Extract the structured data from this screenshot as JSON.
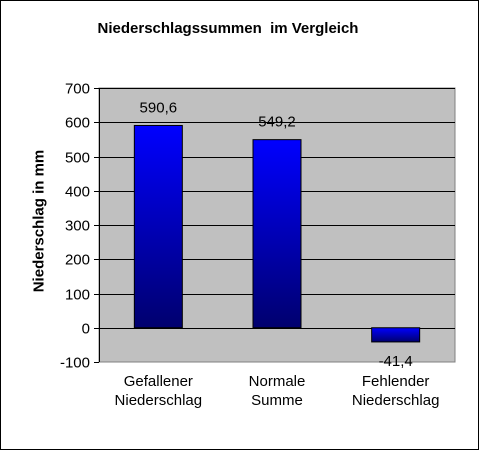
{
  "chart_data": {
    "type": "bar",
    "title": "Niederschlagssummen  im Vergleich",
    "ylabel": "Niederschlag in mm",
    "xlabel": "",
    "categories": [
      [
        "Gefallener",
        "Niederschlag"
      ],
      [
        "Normale",
        "Summe"
      ],
      [
        "Fehlender",
        "Niederschlag"
      ]
    ],
    "values": [
      590.6,
      549.2,
      -41.4
    ],
    "value_labels": [
      "590,6",
      "549,2",
      "-41,4"
    ],
    "ylim": [
      -100,
      700
    ],
    "yticks": [
      -100,
      0,
      100,
      200,
      300,
      400,
      500,
      600,
      700
    ],
    "ytick_labels": [
      "-100",
      "0",
      "100",
      "200",
      "300",
      "400",
      "500",
      "600",
      "700"
    ],
    "grid": true,
    "legend": "none",
    "colors": {
      "plot_background": "#c0c0c0",
      "bar_top": "#0000ff",
      "bar_bottom": "#00006e",
      "gridline": "#000000"
    }
  }
}
